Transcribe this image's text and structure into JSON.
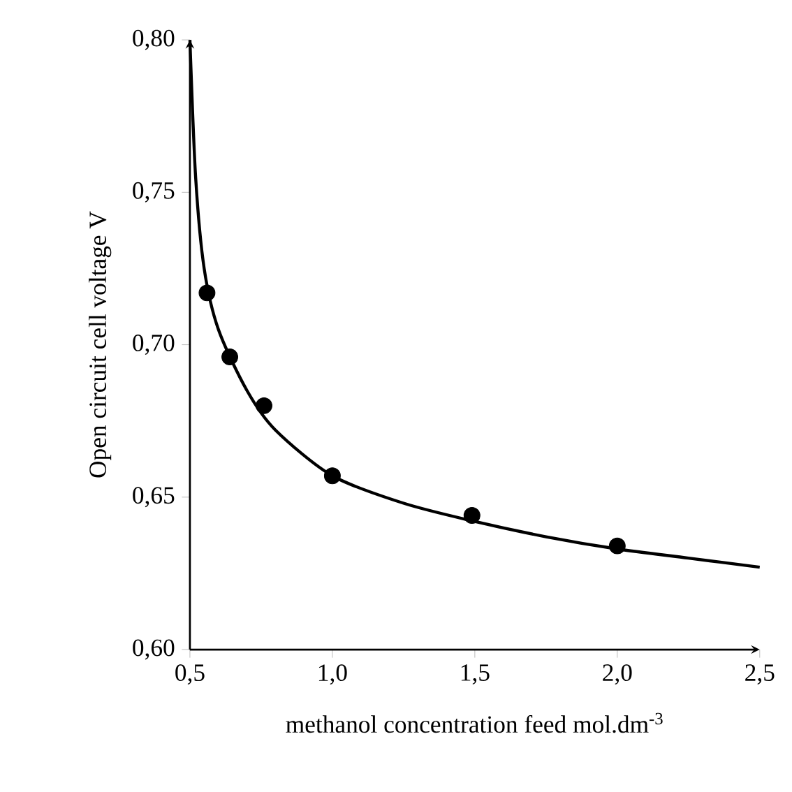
{
  "chart_data": {
    "type": "line",
    "xlabel": "methanol concentration feed mol.dm$^{-3}$",
    "ylabel": "Open circuit cell voltage V",
    "xlim": [
      0.5,
      2.5
    ],
    "ylim": [
      0.6,
      0.8
    ],
    "xticks": [
      {
        "value": 0.5,
        "label": "0,5"
      },
      {
        "value": 1.0,
        "label": "1,0"
      },
      {
        "value": 1.5,
        "label": "1,5"
      },
      {
        "value": 2.0,
        "label": "2,0"
      },
      {
        "value": 2.5,
        "label": "2,5"
      }
    ],
    "yticks": [
      {
        "value": 0.6,
        "label": "0,60"
      },
      {
        "value": 0.65,
        "label": "0,65"
      },
      {
        "value": 0.7,
        "label": "0,70"
      },
      {
        "value": 0.75,
        "label": "0,75"
      },
      {
        "value": 0.8,
        "label": "0,80"
      }
    ],
    "series": [
      {
        "color": "#000000",
        "x": [
          0.5,
          0.52,
          0.55,
          0.6,
          0.7,
          0.8,
          1.0,
          1.25,
          1.5,
          1.75,
          2.0,
          2.25,
          2.5
        ],
        "values": [
          0.8,
          0.755,
          0.725,
          0.705,
          0.685,
          0.672,
          0.657,
          0.648,
          0.642,
          0.637,
          0.633,
          0.63,
          0.627
        ]
      },
      {
        "type": "scatter",
        "color": "#000000",
        "marker": "circle",
        "x": [
          0.56,
          0.64,
          0.76,
          1.0,
          1.49,
          2.0
        ],
        "values": [
          0.717,
          0.696,
          0.68,
          0.657,
          0.644,
          0.634
        ]
      }
    ]
  }
}
